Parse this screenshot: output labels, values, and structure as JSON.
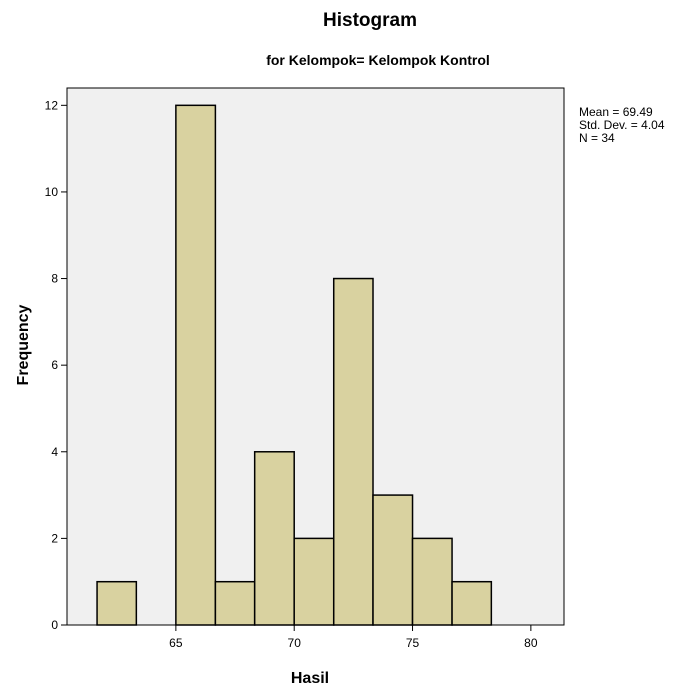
{
  "chart_data": {
    "type": "bar",
    "title": "Histogram",
    "subtitle": "for Kelompok= Kelompok Kontrol",
    "xlabel": "Hasil",
    "ylabel": "Frequency",
    "xlim": [
      60.4,
      81.4
    ],
    "ylim": [
      0,
      12.4
    ],
    "x_ticks": [
      65,
      70,
      75,
      80
    ],
    "y_ticks": [
      0,
      2,
      4,
      6,
      8,
      10,
      12
    ],
    "bin_width": 1.667,
    "bins": [
      {
        "start": 61.67,
        "end": 63.33,
        "count": 1
      },
      {
        "start": 63.33,
        "end": 65.0,
        "count": 0
      },
      {
        "start": 65.0,
        "end": 66.67,
        "count": 12
      },
      {
        "start": 66.67,
        "end": 68.33,
        "count": 1
      },
      {
        "start": 68.33,
        "end": 70.0,
        "count": 4
      },
      {
        "start": 70.0,
        "end": 71.67,
        "count": 2
      },
      {
        "start": 71.67,
        "end": 73.33,
        "count": 8
      },
      {
        "start": 73.33,
        "end": 75.0,
        "count": 3
      },
      {
        "start": 75.0,
        "end": 76.67,
        "count": 2
      },
      {
        "start": 76.67,
        "end": 78.33,
        "count": 1
      }
    ],
    "stats": {
      "mean": "Mean = 69.49",
      "std": "Std. Dev. = 4.04",
      "n": "N = 34"
    },
    "colors": {
      "bar_fill": "#d9d2a0",
      "bar_stroke": "#000000",
      "plot_bg": "#f0f0f0"
    },
    "grid": false,
    "legend": "none"
  }
}
